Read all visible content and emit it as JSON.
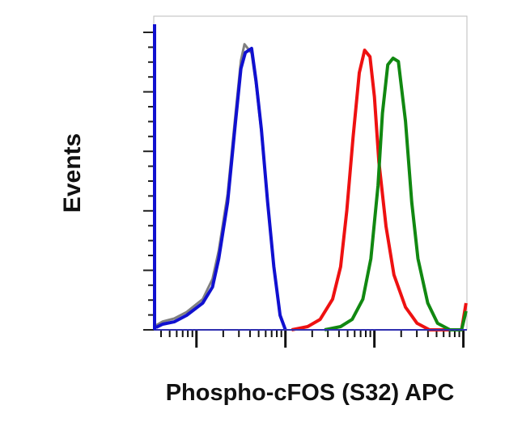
{
  "chart_data": {
    "type": "line",
    "title": "",
    "xlabel": "Phospho-cFOS (S32) APC",
    "ylabel": "Events",
    "x_scale": "log",
    "xlim": [
      0.52,
      4.04
    ],
    "ylim": [
      0,
      100
    ],
    "x_major_ticks": [
      1,
      2,
      3,
      4
    ],
    "y_major_ticks": [
      0,
      20,
      40,
      60,
      80,
      100
    ],
    "grid": false,
    "legend": "none",
    "series": [
      {
        "color": "#808080",
        "x": [
          0.545,
          0.62,
          0.75,
          0.89,
          1.07,
          1.18,
          1.25,
          1.35,
          1.44,
          1.5,
          1.54,
          1.62,
          1.67,
          1.73,
          1.8,
          1.87,
          1.94,
          2.0
        ],
        "y": [
          1.5,
          2.8,
          3.8,
          6.0,
          10.3,
          17.1,
          26.6,
          45.7,
          72.8,
          90.5,
          96.0,
          93.0,
          82.5,
          66.5,
          42.5,
          21.0,
          4.9,
          0
        ]
      },
      {
        "color": "#1010d0",
        "x": [
          0.545,
          0.62,
          0.75,
          0.89,
          1.07,
          1.18,
          1.25,
          1.35,
          1.44,
          1.5,
          1.55,
          1.62,
          1.67,
          1.73,
          1.8,
          1.87,
          1.94,
          2.0
        ],
        "y": [
          0.8,
          1.9,
          2.7,
          4.9,
          9.0,
          14.4,
          23.9,
          42.9,
          70.1,
          87.8,
          93.2,
          94.6,
          83.7,
          67.4,
          43.0,
          21.2,
          4.9,
          0
        ]
      },
      {
        "color": "#ee1111",
        "x": [
          2.07,
          2.25,
          2.39,
          2.53,
          2.62,
          2.69,
          2.76,
          2.83,
          2.89,
          2.95,
          3.0,
          3.05,
          3.13,
          3.22,
          3.35,
          3.48,
          3.62,
          3.98,
          4.03
        ],
        "y": [
          0,
          1.1,
          3.5,
          10.3,
          21.2,
          40.2,
          64.7,
          86.4,
          94.0,
          91.8,
          78.3,
          56.5,
          34.8,
          18.5,
          7.6,
          2.2,
          0,
          0,
          9.0
        ]
      },
      {
        "color": "#118811",
        "x": [
          2.44,
          2.62,
          2.75,
          2.87,
          2.96,
          3.04,
          3.09,
          3.15,
          3.21,
          3.27,
          3.35,
          3.42,
          3.49,
          3.6,
          3.71,
          3.85,
          3.98,
          4.03
        ],
        "y": [
          0,
          1.1,
          3.5,
          10.3,
          23.9,
          48.4,
          72.8,
          89.1,
          91.3,
          90.2,
          70.1,
          42.9,
          23.9,
          9.0,
          2.2,
          0,
          0,
          6.3
        ]
      }
    ]
  }
}
